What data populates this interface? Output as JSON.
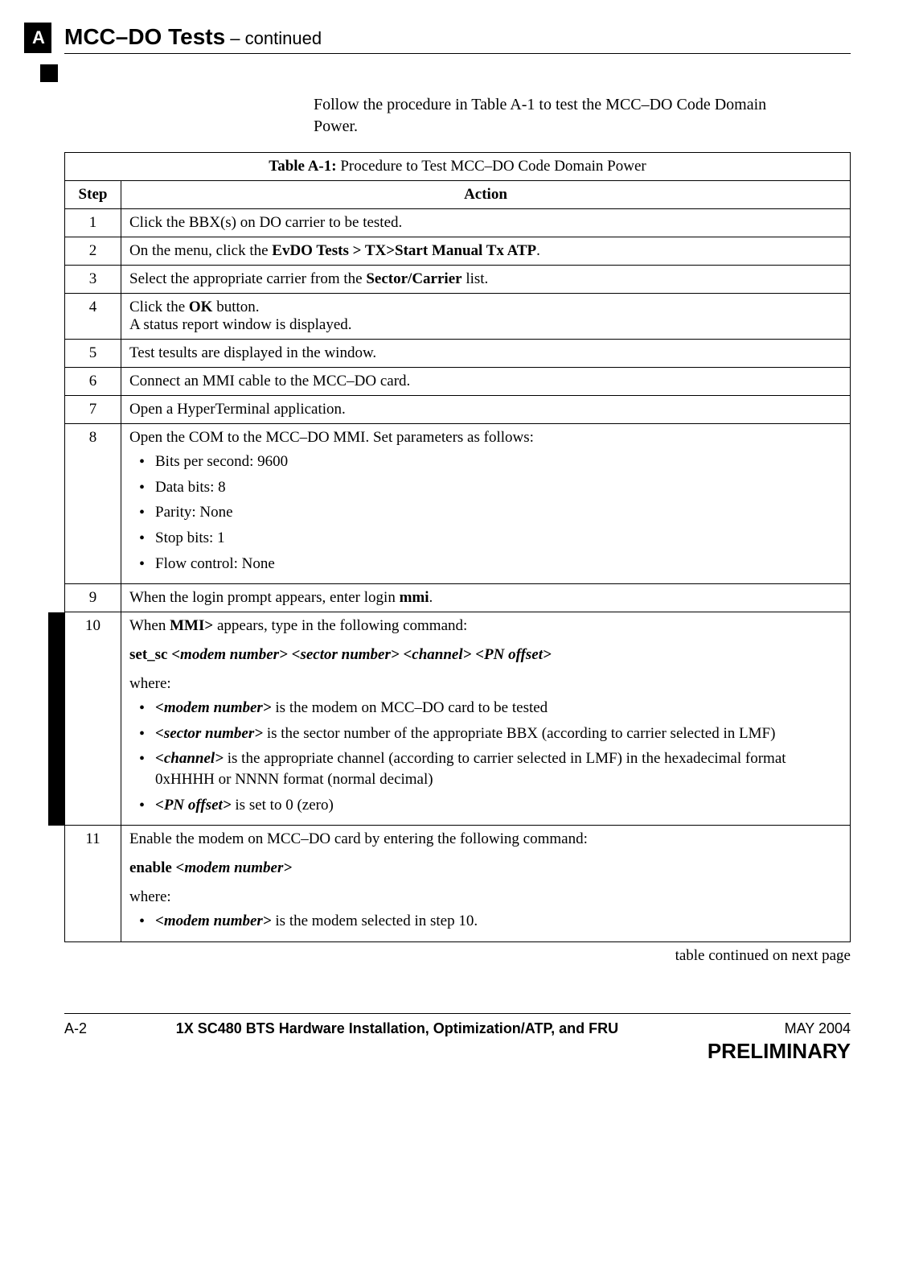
{
  "page": {
    "tab_letter": "A",
    "header_title_bold": "MCC–DO Tests",
    "header_title_cont": " – continued",
    "intro": "Follow the procedure in Table A-1 to test the MCC–DO Code Domain Power.",
    "table_continued": "table continued on next page"
  },
  "table": {
    "title_bold": "Table A-1:",
    "title_rest": " Procedure to Test MCC–DO Code Domain Power",
    "col_step": "Step",
    "col_action": "Action",
    "rows": {
      "r1": {
        "step": "1",
        "text": "Click the BBX(s) on DO carrier to be tested."
      },
      "r2": {
        "step": "2",
        "prefix": "On the menu, click the ",
        "bold": "EvDO Tests > TX>Start Manual Tx ATP",
        "suffix": "."
      },
      "r3": {
        "step": "3",
        "prefix": "Select the appropriate carrier from the ",
        "bold": "Sector/Carrier",
        "suffix": " list."
      },
      "r4": {
        "step": "4",
        "line1a": "Click the ",
        "line1b": "OK",
        "line1c": " button.",
        "line2": "A status report window is displayed."
      },
      "r5": {
        "step": "5",
        "text": "Test tesults are displayed in the window."
      },
      "r6": {
        "step": "6",
        "text": "Connect an MMI cable to the MCC–DO card."
      },
      "r7": {
        "step": "7",
        "text": "Open a HyperTerminal application."
      },
      "r8": {
        "step": "8",
        "intro": "Open the COM to the MCC–DO MMI. Set parameters as follows:",
        "bullets": {
          "b1": "Bits per second:  9600",
          "b2": "Data bits:  8",
          "b3": "Parity:  None",
          "b4": "Stop bits:  1",
          "b5": "Flow control:  None"
        }
      },
      "r9": {
        "step": "9",
        "prefix": "When the login prompt appears, enter login ",
        "bold": "mmi",
        "suffix": "."
      },
      "r10": {
        "step": "10",
        "intro_a": "When ",
        "intro_b": "MMI>",
        "intro_c": " appears, type in the following command:",
        "cmd_a": "set_sc ",
        "cmd_b": "<modem number> <sector number> <channel> <PN offset>",
        "where": "where:",
        "bullets": {
          "b1a": "<modem number>",
          "b1b": " is the modem on MCC–DO card to be tested",
          "b2a": "<sector number>",
          "b2b": " is the sector number of the appropriate BBX (according to carrier selected in LMF)",
          "b3a": "<channel>",
          "b3b": " is the appropriate channel (according to carrier selected in LMF) in the hexadecimal format 0xHHHH or NNNN format (normal decimal)",
          "b4a": "<PN offset>",
          "b4b": " is set to 0 (zero)"
        }
      },
      "r11": {
        "step": "11",
        "intro": "Enable the modem on MCC–DO card by entering the following command:",
        "cmd_a": "enable ",
        "cmd_b": "<modem number>",
        "where": "where:",
        "b1a": "<modem number>",
        "b1b": " is the modem selected in step 10."
      }
    }
  },
  "footer": {
    "page_num": "A-2",
    "doc_title": "1X SC480 BTS Hardware Installation, Optimization/ATP, and FRU",
    "date": "MAY 2004",
    "preliminary": "PRELIMINARY"
  },
  "style": {
    "sidebar_color": "#000000",
    "border_color": "#000000"
  }
}
